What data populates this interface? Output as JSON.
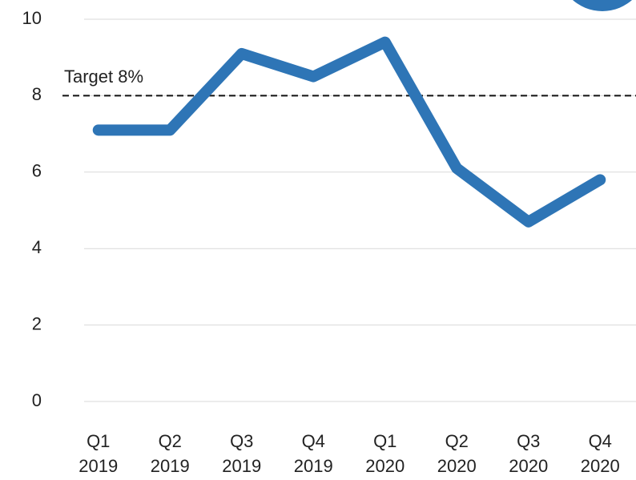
{
  "chart_data": {
    "type": "line",
    "categories": [
      "Q1 2019",
      "Q2 2019",
      "Q3 2019",
      "Q4 2019",
      "Q1 2020",
      "Q2 2020",
      "Q3 2020",
      "Q4 2020"
    ],
    "series": [
      {
        "color": "#2e75b6",
        "values": [
          7.1,
          7.1,
          9.1,
          8.5,
          9.4,
          6.1,
          4.7,
          5.8
        ]
      }
    ],
    "ylim": [
      0,
      10
    ],
    "yticks": [
      0,
      2,
      4,
      6,
      8,
      10
    ],
    "grid": true,
    "annotations": [
      {
        "text": "Target 8%",
        "value": 8
      }
    ]
  }
}
